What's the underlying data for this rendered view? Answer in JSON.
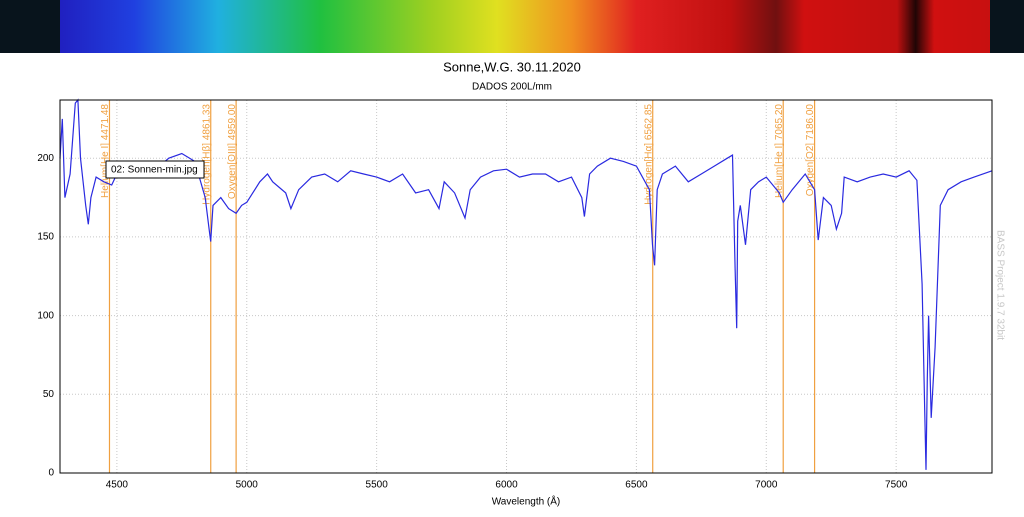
{
  "chart_data": {
    "type": "line",
    "title": "Sonne,W.G. 30.11.2020",
    "subtitle": "DADOS 200L/mm",
    "x_label": "Wavelength (Å)",
    "watermark": "BASS Project 1.9.7 32bit",
    "xlim": [
      4281,
      7869
    ],
    "xticks": [
      4500,
      5000,
      5500,
      6000,
      6500,
      7000,
      7500
    ],
    "ylim": [
      0,
      237
    ],
    "yticks": [
      0,
      50,
      100,
      150,
      200
    ],
    "grid": true,
    "annotation_color": "#f0a040",
    "annotations": [
      {
        "x": 4471.48,
        "label": "Helium[He I] 4471.48"
      },
      {
        "x": 4861.33,
        "label": "Hydrogen[Hβ] 4861.33"
      },
      {
        "x": 4959.0,
        "label": "Oxygen[OIII] 4959.00"
      },
      {
        "x": 6562.85,
        "label": "Hydrogen[Hα] 6562.85"
      },
      {
        "x": 7065.2,
        "label": "Helium[He I] 7065.20"
      },
      {
        "x": 7186.0,
        "label": "Oxygen[O2] 7186.00"
      }
    ],
    "series": [
      {
        "name": "02: Sonnen-min.jpg",
        "color": "#2a2ae0",
        "x": [
          4281,
          4290,
          4300,
          4320,
          4340,
          4350,
          4360,
          4370,
          4380,
          4390,
          4400,
          4420,
          4450,
          4480,
          4500,
          4550,
          4600,
          4650,
          4700,
          4750,
          4800,
          4840,
          4855,
          4861,
          4870,
          4900,
          4930,
          4959,
          4980,
          5000,
          5050,
          5080,
          5100,
          5150,
          5170,
          5200,
          5250,
          5300,
          5350,
          5400,
          5450,
          5500,
          5550,
          5600,
          5650,
          5700,
          5740,
          5760,
          5800,
          5840,
          5860,
          5900,
          5950,
          6000,
          6050,
          6100,
          6150,
          6200,
          6250,
          6290,
          6300,
          6320,
          6350,
          6400,
          6450,
          6500,
          6550,
          6562,
          6570,
          6580,
          6600,
          6650,
          6700,
          6750,
          6800,
          6850,
          6870,
          6880,
          6886,
          6890,
          6900,
          6920,
          6940,
          6970,
          7000,
          7050,
          7065,
          7100,
          7150,
          7186,
          7200,
          7220,
          7250,
          7270,
          7290,
          7300,
          7350,
          7400,
          7450,
          7500,
          7550,
          7580,
          7600,
          7610,
          7615,
          7620,
          7625,
          7635,
          7650,
          7670,
          7700,
          7750,
          7800,
          7869
        ],
        "values": [
          200,
          225,
          175,
          190,
          235,
          237,
          200,
          185,
          170,
          158,
          175,
          188,
          185,
          183,
          190,
          188,
          195,
          193,
          200,
          203,
          198,
          175,
          155,
          147,
          170,
          175,
          168,
          165,
          170,
          172,
          185,
          190,
          185,
          178,
          168,
          180,
          188,
          190,
          185,
          192,
          190,
          188,
          185,
          190,
          178,
          180,
          168,
          185,
          178,
          162,
          180,
          188,
          192,
          193,
          188,
          190,
          190,
          185,
          188,
          175,
          163,
          190,
          195,
          200,
          198,
          195,
          180,
          145,
          132,
          180,
          190,
          195,
          185,
          190,
          195,
          200,
          202,
          130,
          92,
          160,
          170,
          145,
          180,
          185,
          188,
          178,
          172,
          180,
          190,
          180,
          148,
          175,
          170,
          155,
          165,
          188,
          185,
          188,
          190,
          188,
          192,
          186,
          120,
          40,
          2,
          60,
          100,
          35,
          80,
          170,
          180,
          185,
          188,
          192
        ]
      }
    ]
  }
}
